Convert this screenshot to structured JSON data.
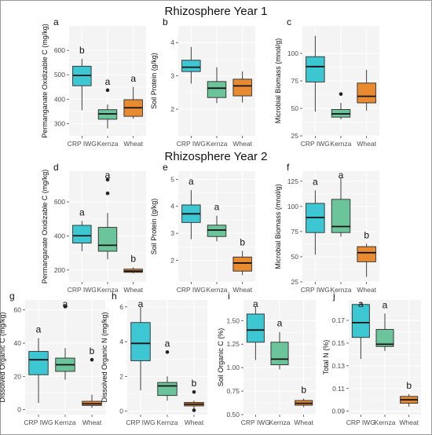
{
  "section_titles": {
    "year1": "Rhizosphere Year 1",
    "year2": "Rhizosphere Year 2"
  },
  "colors": {
    "CRP IWG": "#3cc7d2",
    "Kernza": "#6cc49b",
    "Wheat": "#e88a30",
    "panel_bg": "#f4f4f4",
    "grid": "#ffffff",
    "outline": "#2b2b2b"
  },
  "chart_data": [
    {
      "type": "box",
      "panel_letter": "a",
      "ylabel": "Permanganate Oxidizable C (mg/kg)",
      "ylim": [
        250,
        700
      ],
      "yticks": [
        300,
        400,
        500,
        600
      ],
      "yticklabels": [
        "300",
        "400",
        "500",
        "600"
      ],
      "categories": [
        "CRP IWG",
        "Kernza",
        "Wheat"
      ],
      "boxes": [
        {
          "min": 355,
          "q1": 455,
          "median": 497,
          "q3": 535,
          "max": 565,
          "outliers": [],
          "letter": "b"
        },
        {
          "min": 280,
          "q1": 318,
          "median": 340,
          "q3": 357,
          "max": 378,
          "outliers": [
            437
          ],
          "letter": "a"
        },
        {
          "min": 320,
          "q1": 330,
          "median": 365,
          "q3": 398,
          "max": 450,
          "outliers": [],
          "letter": "a"
        }
      ]
    },
    {
      "type": "box",
      "panel_letter": "b",
      "ylabel": "Soil Protein (g/kg)",
      "ylim": [
        1.2,
        4.5
      ],
      "yticks": [
        2,
        3,
        4
      ],
      "yticklabels": [
        "2",
        "3",
        "4"
      ],
      "categories": [
        "CRP IWG",
        "Kernza",
        "Wheat"
      ],
      "boxes": [
        {
          "min": 2.77,
          "q1": 3.13,
          "median": 3.26,
          "q3": 3.47,
          "max": 3.87,
          "outliers": [],
          "letter": ""
        },
        {
          "min": 2.18,
          "q1": 2.35,
          "median": 2.63,
          "q3": 2.83,
          "max": 3.26,
          "outliers": [],
          "letter": ""
        },
        {
          "min": 2.2,
          "q1": 2.4,
          "median": 2.7,
          "q3": 2.9,
          "max": 3.13,
          "outliers": [],
          "letter": ""
        }
      ]
    },
    {
      "type": "box",
      "panel_letter": "c",
      "ylabel": "Microbial Biomass (mnol/g)",
      "ylim": [
        25,
        125
      ],
      "yticks": [
        25,
        50,
        75,
        100
      ],
      "yticklabels": [
        "25",
        "50",
        "75",
        "100"
      ],
      "categories": [
        "CRP IWG",
        "Kernza",
        "Wheat"
      ],
      "boxes": [
        {
          "min": 47,
          "q1": 74,
          "median": 88,
          "q3": 97,
          "max": 116,
          "outliers": [],
          "letter": ""
        },
        {
          "min": 40,
          "q1": 42,
          "median": 45,
          "q3": 49,
          "max": 55,
          "outliers": [
            63
          ],
          "letter": ""
        },
        {
          "min": 48,
          "q1": 55,
          "median": 61,
          "q3": 73,
          "max": 85,
          "outliers": [],
          "letter": ""
        }
      ]
    },
    {
      "type": "box",
      "panel_letter": "d",
      "ylabel": "Permanganate Oxidizable C (mg/kg)",
      "ylim": [
        130,
        780
      ],
      "yticks": [
        200,
        400,
        600
      ],
      "yticklabels": [
        "200",
        "400",
        "600"
      ],
      "categories": [
        "CRP IWG",
        "Kernza",
        "Wheat"
      ],
      "boxes": [
        {
          "min": 310,
          "q1": 358,
          "median": 401,
          "q3": 462,
          "max": 488,
          "outliers": [],
          "letter": "a"
        },
        {
          "min": 262,
          "q1": 310,
          "median": 345,
          "q3": 450,
          "max": 535,
          "outliers": [
            650,
            730
          ],
          "letter": "a"
        },
        {
          "min": 180,
          "q1": 186,
          "median": 193,
          "q3": 205,
          "max": 215,
          "outliers": [],
          "letter": "b"
        }
      ]
    },
    {
      "type": "box",
      "panel_letter": "e",
      "ylabel": "Soil Protein (g/kg)",
      "ylim": [
        1.2,
        5.3
      ],
      "yticks": [
        2,
        3,
        4,
        5
      ],
      "yticklabels": [
        "2",
        "3",
        "4",
        "5"
      ],
      "categories": [
        "CRP IWG",
        "Kernza",
        "Wheat"
      ],
      "boxes": [
        {
          "min": 2.78,
          "q1": 3.4,
          "median": 3.72,
          "q3": 4.05,
          "max": 4.6,
          "outliers": [],
          "letter": "a"
        },
        {
          "min": 2.7,
          "q1": 2.88,
          "median": 3.12,
          "q3": 3.3,
          "max": 3.65,
          "outliers": [],
          "letter": "a"
        },
        {
          "min": 1.45,
          "q1": 1.6,
          "median": 1.9,
          "q3": 2.12,
          "max": 2.35,
          "outliers": [],
          "letter": "b"
        }
      ]
    },
    {
      "type": "box",
      "panel_letter": "f",
      "ylabel": "Microbial Biomass (mnol/g)",
      "ylim": [
        25,
        135
      ],
      "yticks": [
        25,
        50,
        75,
        100,
        125
      ],
      "yticklabels": [
        "25",
        "50",
        "75",
        "100",
        "125"
      ],
      "categories": [
        "CRP IWG",
        "Kernza",
        "Wheat"
      ],
      "boxes": [
        {
          "min": 52,
          "q1": 74,
          "median": 89,
          "q3": 103,
          "max": 116,
          "outliers": [],
          "letter": "a"
        },
        {
          "min": 70,
          "q1": 74,
          "median": 80,
          "q3": 107,
          "max": 129,
          "outliers": [],
          "letter": "a"
        },
        {
          "min": 30,
          "q1": 45,
          "median": 54,
          "q3": 60,
          "max": 63,
          "outliers": [],
          "letter": "b"
        }
      ]
    },
    {
      "type": "box",
      "panel_letter": "g",
      "ylabel": "Dissolved Organic C (mg/kg)",
      "ylim": [
        -3,
        66
      ],
      "yticks": [
        0,
        20,
        40,
        60
      ],
      "yticklabels": [
        "0",
        "20",
        "40",
        "60"
      ],
      "categories": [
        "CRP IWG",
        "Kernza",
        "Wheat"
      ],
      "boxes": [
        {
          "min": 4,
          "q1": 21,
          "median": 30,
          "q3": 35,
          "max": 43,
          "outliers": [],
          "letter": "a"
        },
        {
          "min": 18,
          "q1": 23,
          "median": 27,
          "q3": 31,
          "max": 37,
          "outliers": [
            62
          ],
          "letter": "a"
        },
        {
          "min": 1,
          "q1": 2.5,
          "median": 3.5,
          "q3": 5,
          "max": 9,
          "outliers": [
            30
          ],
          "letter": "b"
        }
      ]
    },
    {
      "type": "box",
      "panel_letter": "h",
      "ylabel": "Dissolved Organic N (mg/kg)",
      "ylim": [
        -0.2,
        6.4
      ],
      "yticks": [
        0,
        2,
        4,
        6
      ],
      "yticklabels": [
        "0",
        "2",
        "4",
        "6"
      ],
      "categories": [
        "CRP IWG",
        "Kernza",
        "Wheat"
      ],
      "boxes": [
        {
          "min": 1.2,
          "q1": 2.9,
          "median": 3.9,
          "q3": 5.1,
          "max": 6,
          "outliers": [],
          "letter": "a"
        },
        {
          "min": 0.6,
          "q1": 0.9,
          "median": 1.45,
          "q3": 1.65,
          "max": 2,
          "outliers": [
            3.4
          ],
          "letter": "a"
        },
        {
          "min": 0.15,
          "q1": 0.3,
          "median": 0.4,
          "q3": 0.5,
          "max": 0.6,
          "outliers": [
            1.1,
            0.05
          ],
          "letter": "b"
        }
      ]
    },
    {
      "type": "box",
      "panel_letter": "i",
      "ylabel": "Soil Organic C (%)",
      "ylim": [
        0.5,
        1.72
      ],
      "yticks": [
        0.5,
        0.75,
        1.0,
        1.25,
        1.5
      ],
      "yticklabels": [
        "0.50",
        "0.75",
        "1.00",
        "1.25",
        "1.50"
      ],
      "categories": [
        "CRP IWG",
        "Kernza",
        "Wheat"
      ],
      "boxes": [
        {
          "min": 1.08,
          "q1": 1.27,
          "median": 1.4,
          "q3": 1.57,
          "max": 1.65,
          "outliers": [],
          "letter": "a"
        },
        {
          "min": 0.98,
          "q1": 1.03,
          "median": 1.09,
          "q3": 1.27,
          "max": 1.38,
          "outliers": [],
          "letter": "a"
        },
        {
          "min": 0.58,
          "q1": 0.6,
          "median": 0.62,
          "q3": 0.65,
          "max": 0.67,
          "outliers": [],
          "letter": "b"
        }
      ]
    },
    {
      "type": "box",
      "panel_letter": "j",
      "ylabel": "Total N (%)",
      "ylim": [
        0.087,
        0.188
      ],
      "yticks": [
        0.09,
        0.11,
        0.13,
        0.15,
        0.17
      ],
      "yticklabels": [
        "0.09",
        "0.11",
        "0.13",
        "0.15",
        "0.17"
      ],
      "categories": [
        "CRP IWG",
        "Kernza",
        "Wheat"
      ],
      "boxes": [
        {
          "min": 0.136,
          "q1": 0.155,
          "median": 0.168,
          "q3": 0.184,
          "max": 0.186,
          "outliers": [],
          "letter": "a"
        },
        {
          "min": 0.143,
          "q1": 0.147,
          "median": 0.149,
          "q3": 0.162,
          "max": 0.176,
          "outliers": [],
          "letter": "a"
        },
        {
          "min": 0.094,
          "q1": 0.097,
          "median": 0.1,
          "q3": 0.103,
          "max": 0.105,
          "outliers": [],
          "letter": "b"
        }
      ]
    }
  ]
}
